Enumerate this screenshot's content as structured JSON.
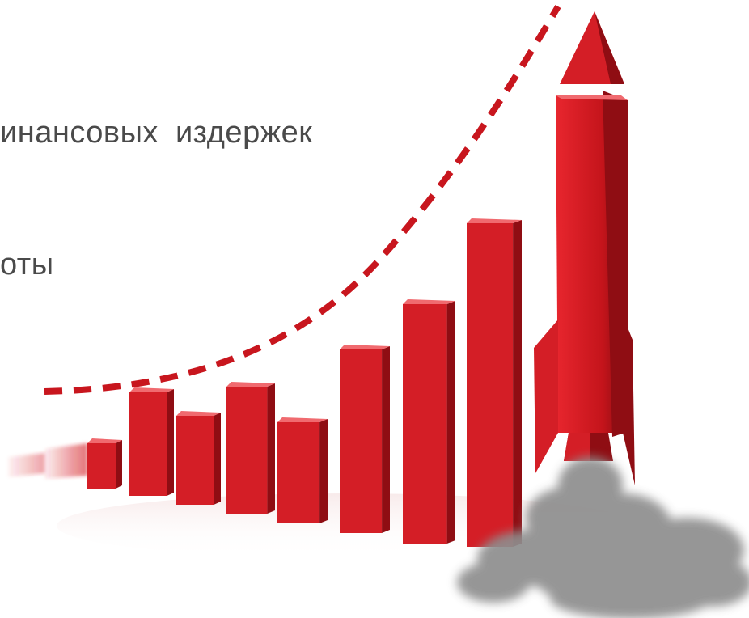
{
  "text": {
    "line1": "инансовых  издержек",
    "line2": "оты"
  },
  "colors": {
    "bar_front": "#d41e26",
    "bar_side": "#8f0d13",
    "bar_top": "#f06a6f",
    "dashed_curve": "#c8161e",
    "smoke": "#8e8e8e",
    "text": "#4a4a4a"
  },
  "illustration": {
    "subject": "rising-bar-chart-with-rocket",
    "bar_count": 9,
    "has_rocket": true,
    "has_dashed_growth-curve": true
  }
}
